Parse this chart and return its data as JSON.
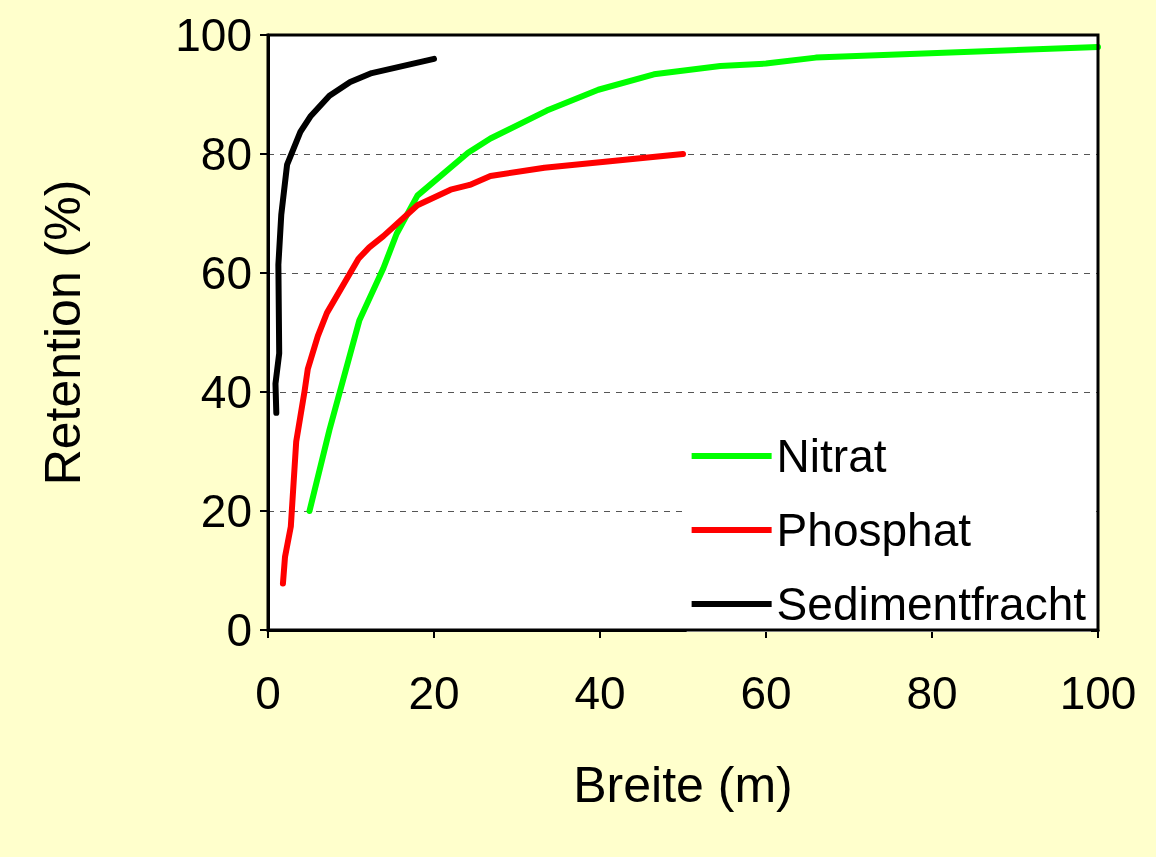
{
  "chart_data": {
    "type": "line",
    "xlabel": "Breite (m)",
    "ylabel": "Retention (%)",
    "xlim": [
      0,
      100
    ],
    "xticks": [
      0,
      20,
      40,
      60,
      80,
      100
    ],
    "ylim": [
      0,
      100
    ],
    "yticks": [
      0,
      20,
      40,
      60,
      80,
      100
    ],
    "grid": "y",
    "legend": "bottom right",
    "marker": "none",
    "line_style": "solid",
    "series": [
      {
        "name": "Nitrat",
        "color": "#00ff00",
        "x": [
          5,
          7.4,
          11,
          13.9,
          15.5,
          18,
          24.1,
          26.8,
          33.6,
          39.8,
          46.5,
          54.5,
          60,
          66,
          100
        ],
        "values": [
          20,
          33.6,
          52,
          60.8,
          66.6,
          73,
          80.2,
          82.6,
          87.3,
          90.8,
          93.4,
          94.8,
          95.2,
          96.2,
          98
        ]
      },
      {
        "name": "Phosphat",
        "color": "#ff0000",
        "x": [
          1.8,
          2.05,
          2.75,
          3.4,
          3.9,
          4.4,
          4.8,
          6,
          7.1,
          10.9,
          12.2,
          13.9,
          18,
          22,
          24.3,
          26.8,
          33.3,
          50
        ],
        "values": [
          7.8,
          12.3,
          17.4,
          31.7,
          35.9,
          40.1,
          43.9,
          49.4,
          53.3,
          62.4,
          64.3,
          66.2,
          71.4,
          74,
          74.8,
          76.3,
          77.7,
          80
        ]
      },
      {
        "name": "Sedimentfracht",
        "color": "#000000",
        "x": [
          1,
          0.9,
          1.35,
          1.25,
          1.6,
          2.3,
          3.9,
          5.1,
          7.4,
          9.9,
          12.5,
          20
        ],
        "values": [
          36.5,
          41.4,
          46.5,
          61.4,
          69.8,
          78.2,
          83.7,
          86.3,
          89.8,
          92.1,
          93.6,
          96
        ]
      }
    ]
  }
}
